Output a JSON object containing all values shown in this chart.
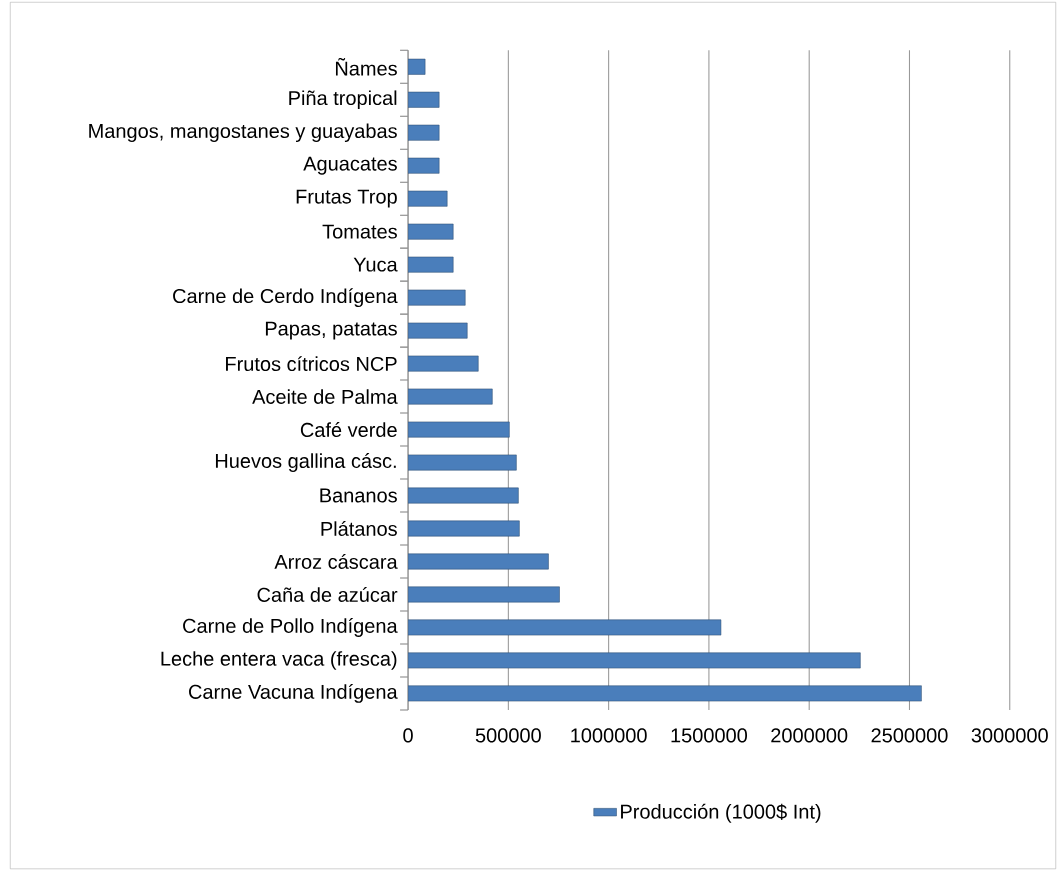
{
  "chart_data": {
    "type": "bar",
    "orientation": "horizontal",
    "categories": [
      "Ñames",
      "Piña tropical",
      "Mangos, mangostanes y guayabas",
      "Aguacates",
      "Frutas Trop",
      "Tomates",
      "Yuca",
      "Carne de Cerdo Indígena",
      "Papas, patatas",
      "Frutos cítricos NCP",
      "Aceite de Palma",
      "Café verde",
      "Huevos gallina cásc.",
      "Bananos",
      "Plátanos",
      "Arroz cáscara",
      "Caña de azúcar",
      "Carne de Pollo Indígena",
      "Leche entera vaca (fresca)",
      "Carne Vacuna Indígena"
    ],
    "series": [
      {
        "name": "Producción (1000$ Int)",
        "color": "#4a7ebb",
        "values": [
          85000,
          155000,
          155000,
          155000,
          195000,
          225000,
          225000,
          285000,
          295000,
          350000,
          420000,
          505000,
          540000,
          550000,
          555000,
          700000,
          755000,
          1560000,
          2255000,
          2560000
        ]
      }
    ],
    "xlim": [
      0,
      3000000
    ],
    "xticks": [
      0,
      500000,
      1000000,
      1500000,
      2000000,
      2500000,
      3000000
    ],
    "grid": "x",
    "legend": "bottom"
  }
}
